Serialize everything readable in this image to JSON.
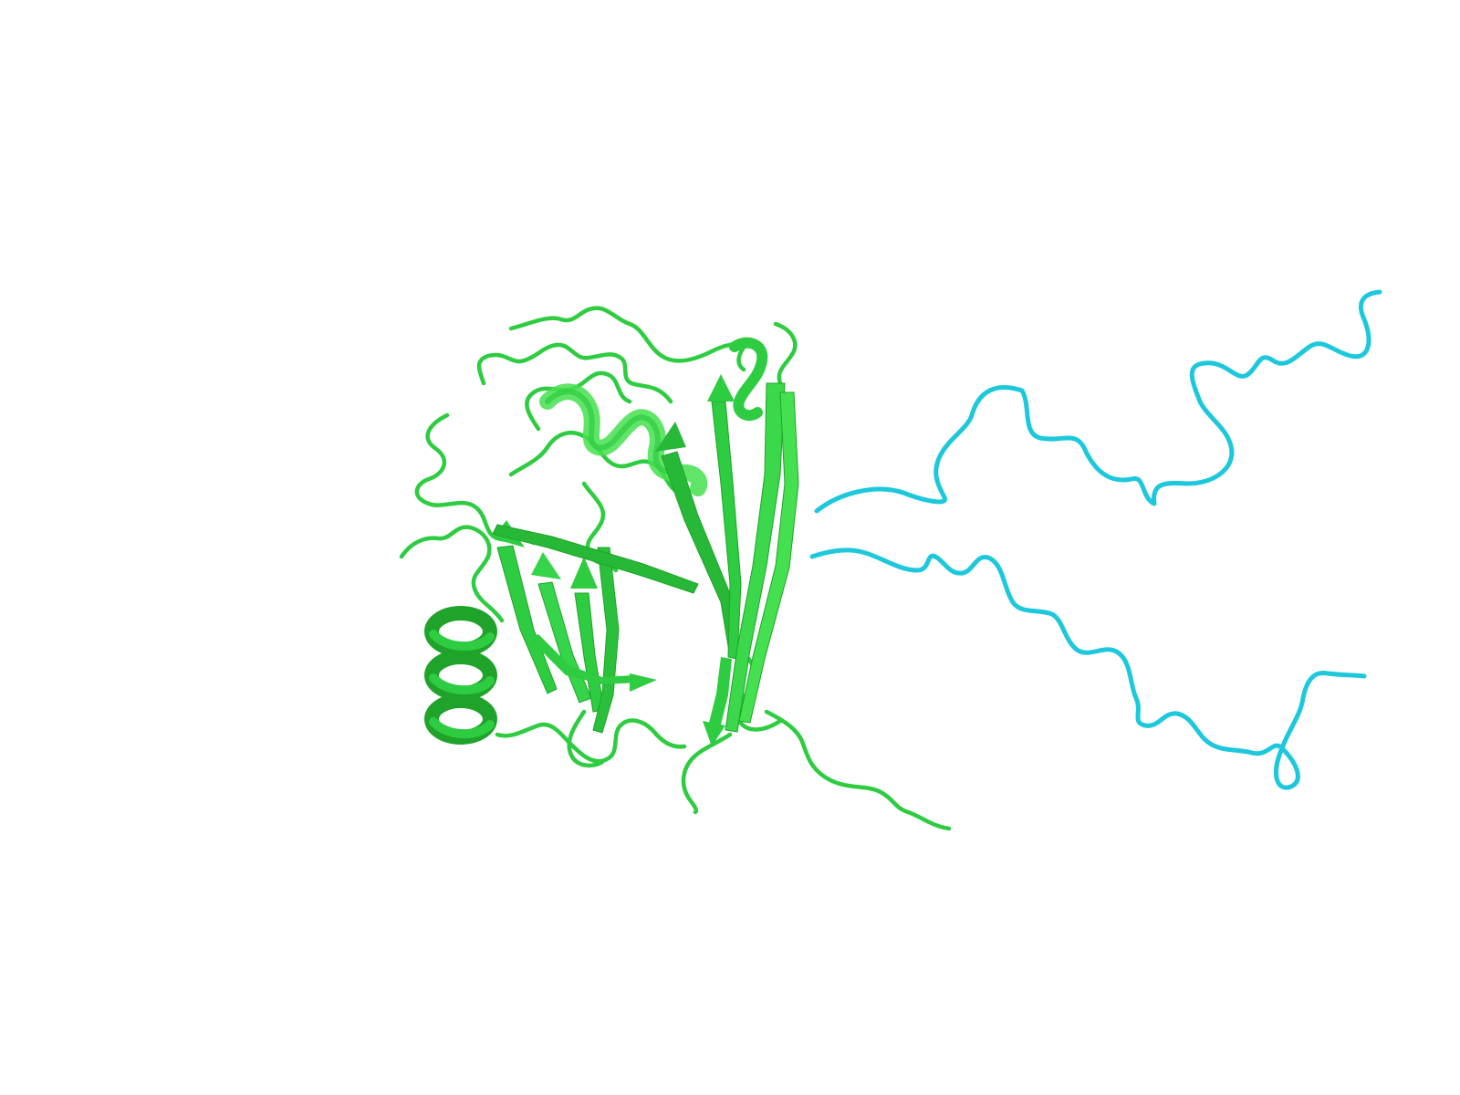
{
  "scene": {
    "background_color": "#ffffff",
    "subject": "protein-cartoon",
    "chains": [
      {
        "name": "chain-a",
        "color": "#2ecc40",
        "color_light": "#45e04f",
        "color_dark": "#1fa32a",
        "secondary_structure": [
          "beta-sheet",
          "alpha-helix",
          "loop"
        ]
      },
      {
        "name": "chain-b",
        "color": "#1ec8dc",
        "color_dark": "#13a3b4",
        "secondary_structure": [
          "loop"
        ]
      }
    ]
  }
}
